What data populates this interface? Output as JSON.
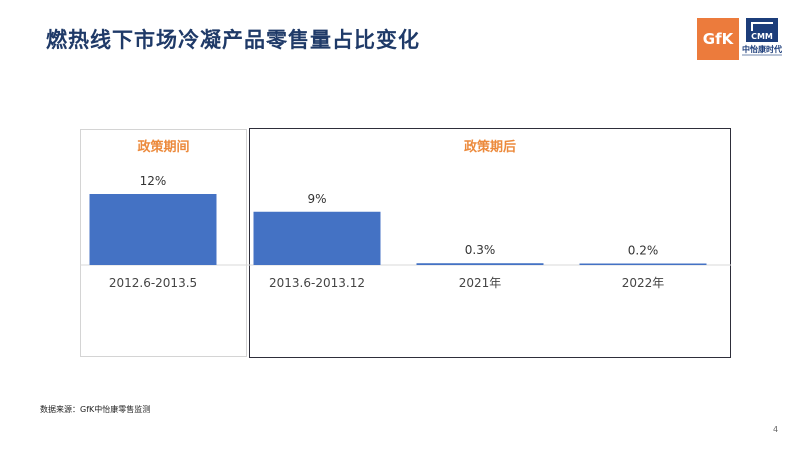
{
  "slide": {
    "title": "燃热线下市场冷凝产品零售量占比变化",
    "source": "数据来源：GfK中怡康零售监测",
    "page_number": "4"
  },
  "logos": {
    "gfk_text": "GfK",
    "cmm_text": "CMM",
    "cmm_cn": "中怡康时代"
  },
  "panels": {
    "during_label": "政策期间",
    "after_label": "政策期后"
  },
  "colors": {
    "bar": "#4472c4",
    "title": "#1f3a68",
    "panel_header": "#ec8a3c",
    "gfk_brand": "#ec7b3c",
    "cmm_brand": "#1c3d7a"
  },
  "chart_data": {
    "type": "bar",
    "categories": [
      "2012.6-2013.5",
      "2013.6-2013.12",
      "2021年",
      "2022年"
    ],
    "values": [
      12,
      9,
      0.3,
      0.2
    ],
    "data_labels": [
      "12%",
      "9%",
      "0.3%",
      "0.2%"
    ],
    "unit": "%",
    "ylim": [
      0,
      14
    ],
    "grid": false,
    "legend": "none",
    "groups": [
      {
        "label": "政策期间",
        "categories": [
          "2012.6-2013.5"
        ]
      },
      {
        "label": "政策期后",
        "categories": [
          "2013.6-2013.12",
          "2021年",
          "2022年"
        ]
      }
    ]
  }
}
